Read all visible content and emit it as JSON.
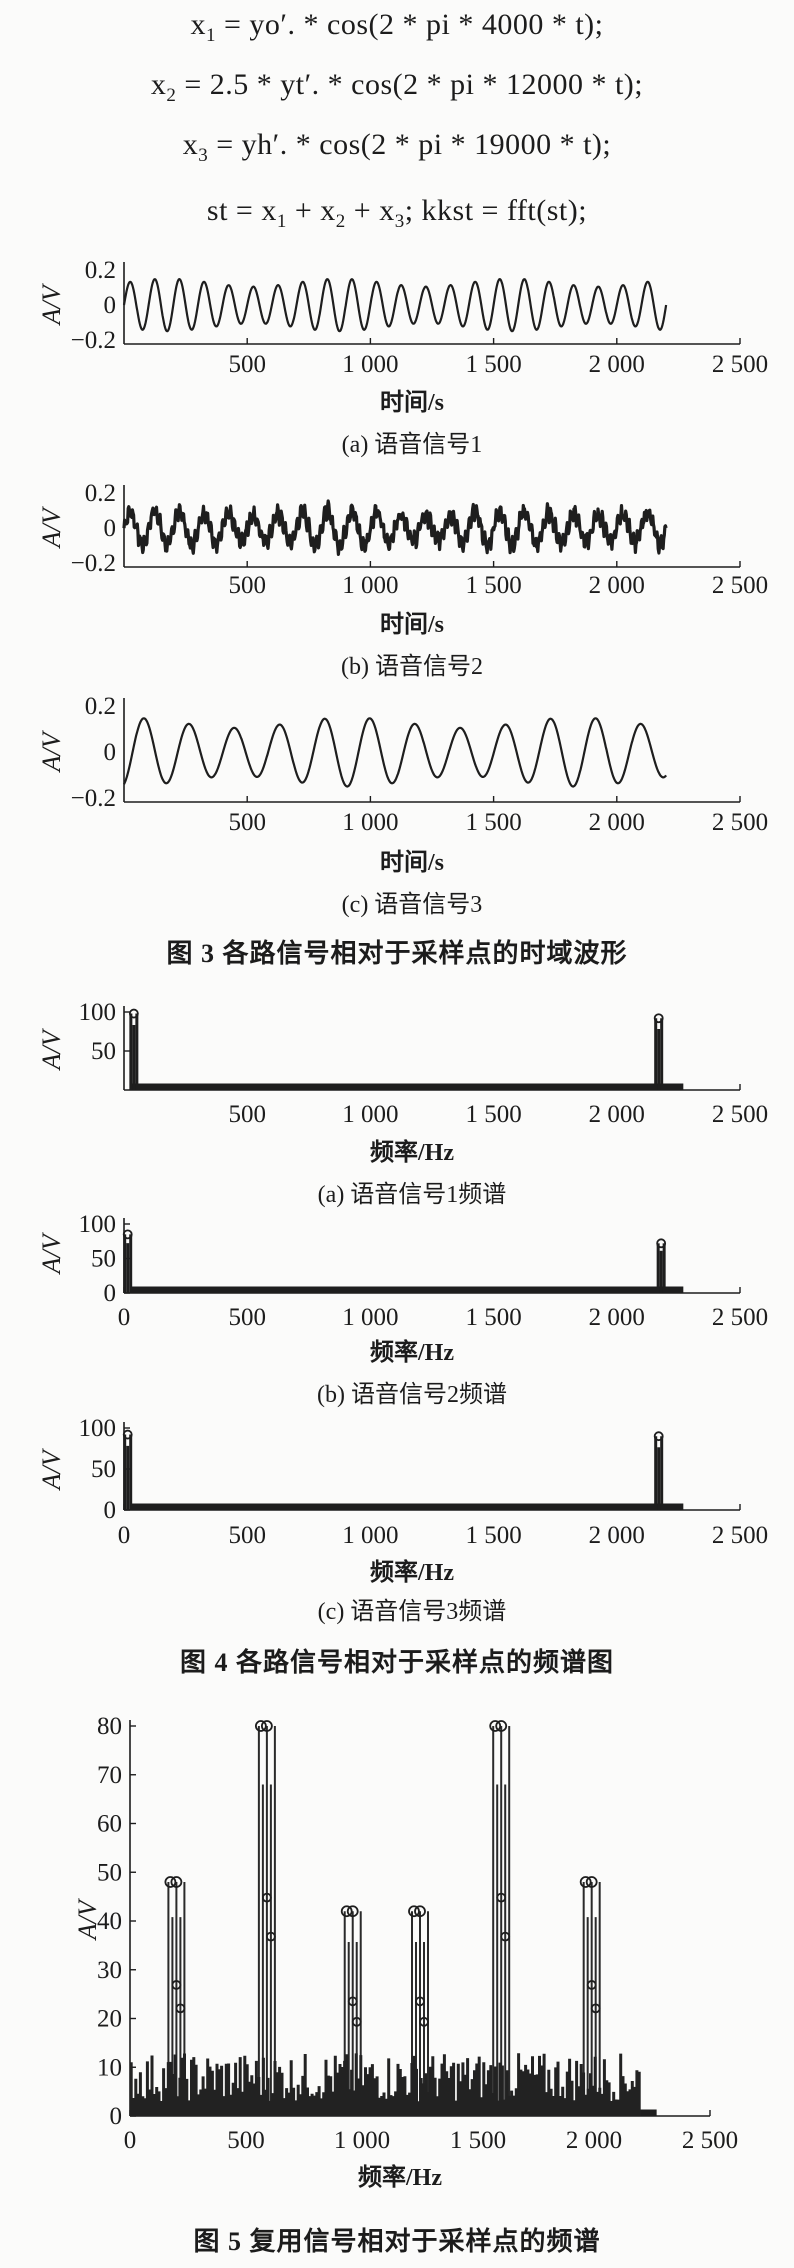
{
  "equations": {
    "line1": {
      "lhs": "x",
      "sub": "1",
      "rhs": "= yo′. * cos(2 * pi * 4000 * t);"
    },
    "line2": {
      "lhs": "x",
      "sub": "2",
      "rhs": "= 2.5 * yt′. * cos(2 * pi * 12000 * t);"
    },
    "line3": {
      "lhs": "x",
      "sub": "3",
      "rhs": "= yh′. * cos(2 * pi * 19000 * t);"
    },
    "line4": {
      "a": "st = x",
      "s1": "1",
      "b": " + x",
      "s2": "2",
      "c": " + x",
      "s3": "3",
      "d": "; kkst = fft(st);"
    }
  },
  "chart_data": [
    {
      "id": "fig3a",
      "type": "line",
      "caption": "(a) 语音信号1",
      "xlabel": "时间/s",
      "ylabel": "A/V",
      "xticks": [
        "500",
        "1 000",
        "1 500",
        "2 000",
        "2 500"
      ],
      "yticks": [
        "0.2",
        "0",
        "−0.2"
      ],
      "xlim": [
        0,
        2500
      ],
      "ylim": [
        -0.2,
        0.2
      ],
      "x_range": [
        0,
        2200
      ],
      "amplitude": 0.15,
      "cycles": 22
    },
    {
      "id": "fig3b",
      "type": "line",
      "caption": "(b) 语音信号2",
      "xlabel": "时间/s",
      "ylabel": "A/V",
      "xticks": [
        "500",
        "1 000",
        "1 500",
        "2 000",
        "2 500"
      ],
      "yticks": [
        "0.2",
        "0",
        "−0.2"
      ],
      "xlim": [
        0,
        2500
      ],
      "ylim": [
        -0.2,
        0.2
      ],
      "x_range": [
        0,
        2200
      ],
      "amplitude": 0.1,
      "cycles": 22
    },
    {
      "id": "fig3c",
      "type": "line",
      "caption": "(c) 语音信号3",
      "xlabel": "时间/s",
      "ylabel": "A/V",
      "xticks": [
        "500",
        "1 000",
        "1 500",
        "2 000",
        "2 500"
      ],
      "yticks": [
        "0.2",
        "0",
        "−0.2"
      ],
      "xlim": [
        0,
        2500
      ],
      "ylim": [
        -0.2,
        0.2
      ],
      "x_range": [
        0,
        2200
      ],
      "amplitude": 0.15,
      "cycles": 12
    },
    {
      "id": "fig4a",
      "type": "bar",
      "caption": "(a) 语音信号1频谱",
      "xlabel": "频率/Hz",
      "ylabel": "A/V",
      "xticks": [
        "500",
        "1 000",
        "1 500",
        "2 000",
        "2 500"
      ],
      "yticks": [
        "100",
        "50"
      ],
      "xlim": [
        0,
        2500
      ],
      "ylim": [
        0,
        100
      ],
      "peaks": [
        {
          "x": 40,
          "y": 98
        },
        {
          "x": 2170,
          "y": 92
        }
      ]
    },
    {
      "id": "fig4b",
      "type": "bar",
      "caption": "(b) 语音信号2频谱",
      "xlabel": "频率/Hz",
      "ylabel": "A/V",
      "xticks": [
        "0",
        "500",
        "1 000",
        "1 500",
        "2 000",
        "2 500"
      ],
      "yticks": [
        "100",
        "50",
        "0"
      ],
      "xlim": [
        0,
        2500
      ],
      "ylim": [
        0,
        100
      ],
      "peaks": [
        {
          "x": 15,
          "y": 85
        },
        {
          "x": 2180,
          "y": 72
        }
      ]
    },
    {
      "id": "fig4c",
      "type": "bar",
      "caption": "(c) 语音信号3频谱",
      "xlabel": "频率/Hz",
      "ylabel": "A/V",
      "xticks": [
        "0",
        "500",
        "1 000",
        "1 500",
        "2 000",
        "2 500"
      ],
      "yticks": [
        "100",
        "50",
        "0"
      ],
      "xlim": [
        0,
        2500
      ],
      "ylim": [
        0,
        100
      ],
      "peaks": [
        {
          "x": 15,
          "y": 92
        },
        {
          "x": 2170,
          "y": 90
        }
      ]
    },
    {
      "id": "fig5",
      "type": "bar",
      "caption": "",
      "xlabel": "频率/Hz",
      "ylabel": "A/V",
      "xticks": [
        "0",
        "500",
        "1 000",
        "1 500",
        "2 000",
        "2 500"
      ],
      "yticks": [
        "80",
        "70",
        "60",
        "50",
        "40",
        "30",
        "20",
        "10",
        "0"
      ],
      "xlim": [
        0,
        2500
      ],
      "ylim": [
        0,
        80
      ],
      "peaks": [
        {
          "x": 200,
          "y": 48
        },
        {
          "x": 590,
          "y": 80
        },
        {
          "x": 960,
          "y": 42
        },
        {
          "x": 1250,
          "y": 42
        },
        {
          "x": 1600,
          "y": 80
        },
        {
          "x": 1990,
          "y": 48
        }
      ]
    }
  ],
  "figure_titles": {
    "fig3": "图 3   各路信号相对于采样点的时域波形",
    "fig4": "图 4   各路信号相对于采样点的频谱图",
    "fig5": "图 5   复用信号相对于采样点的频谱"
  }
}
